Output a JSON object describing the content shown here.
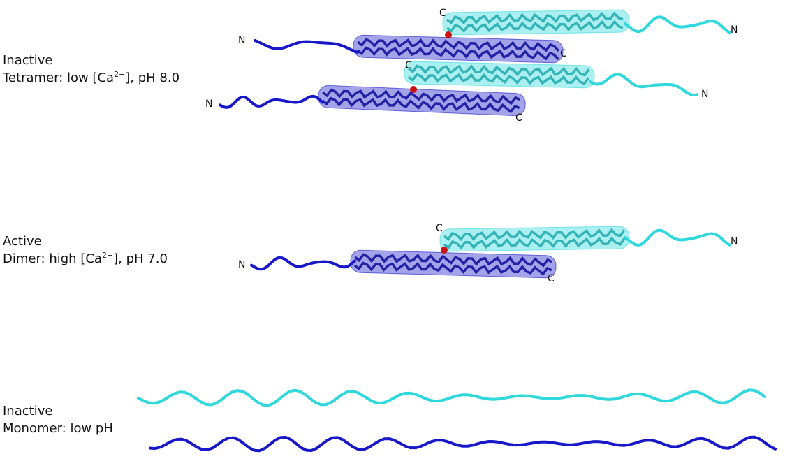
{
  "panels": [
    {
      "state": "Inactive",
      "description": {
        "before": "Tetramer: low [Ca",
        "sup": "2+",
        "after": "], pH 8.0"
      },
      "termini": [
        "N",
        "C",
        "C",
        "N",
        "C",
        "N",
        "C",
        "N"
      ]
    },
    {
      "state": "Active",
      "description": {
        "before": "Dimer: high [Ca",
        "sup": "2+",
        "after": "], pH 7.0"
      },
      "termini": [
        "C",
        "N",
        "C",
        "N"
      ]
    },
    {
      "state": "Inactive",
      "description": {
        "before": "Monomer: low pH"
      }
    }
  ]
}
